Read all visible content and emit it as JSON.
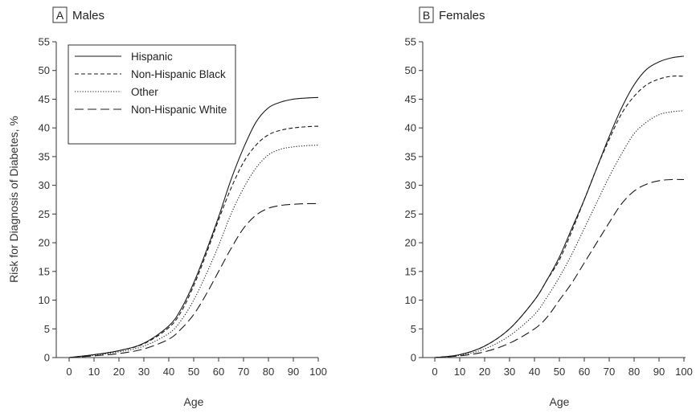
{
  "figure": {
    "ylabel": "Risk for Diagnosis of Diabetes, %"
  },
  "chart_data": [
    {
      "type": "line",
      "panel_letter": "A",
      "title": "Males",
      "xlabel": "Age",
      "ylabel": "Risk for Diagnosis of Diabetes, %",
      "xlim": [
        0,
        100
      ],
      "ylim": [
        0,
        55
      ],
      "xticks": [
        0,
        10,
        20,
        30,
        40,
        50,
        60,
        70,
        80,
        90,
        100
      ],
      "yticks": [
        0,
        5,
        10,
        15,
        20,
        25,
        30,
        35,
        40,
        45,
        50,
        55
      ],
      "grid": false,
      "legend_position": "top-left",
      "x": [
        0,
        10,
        20,
        30,
        40,
        45,
        50,
        55,
        60,
        65,
        70,
        75,
        80,
        85,
        90,
        95,
        100
      ],
      "series": [
        {
          "name": "Hispanic",
          "dash": "solid",
          "values": [
            0,
            0.5,
            1.2,
            2.5,
            5.5,
            8.5,
            13,
            18.5,
            24.5,
            31,
            36.5,
            41,
            43.5,
            44.5,
            45,
            45.2,
            45.3
          ]
        },
        {
          "name": "Non-Hispanic Black",
          "dash": "dashed",
          "values": [
            0,
            0.5,
            1.2,
            2.4,
            5.2,
            8,
            12.5,
            18,
            24,
            29.5,
            34,
            37,
            38.8,
            39.6,
            40,
            40.2,
            40.3
          ]
        },
        {
          "name": "Other",
          "dash": "dotted",
          "values": [
            0,
            0.4,
            1,
            2,
            4.2,
            6.5,
            10,
            14.5,
            19.5,
            25,
            29.5,
            33,
            35.3,
            36.3,
            36.7,
            36.9,
            37
          ]
        },
        {
          "name": "Non-Hispanic White",
          "dash": "longdash",
          "values": [
            0,
            0.3,
            0.7,
            1.5,
            3.2,
            5,
            7.5,
            11,
            15,
            19,
            22.5,
            24.8,
            26,
            26.5,
            26.7,
            26.8,
            26.8
          ]
        }
      ]
    },
    {
      "type": "line",
      "panel_letter": "B",
      "title": "Females",
      "xlabel": "Age",
      "ylabel": "",
      "xlim": [
        0,
        100
      ],
      "ylim": [
        0,
        55
      ],
      "xticks": [
        0,
        10,
        20,
        30,
        40,
        50,
        60,
        70,
        80,
        90,
        100
      ],
      "yticks": [
        0,
        5,
        10,
        15,
        20,
        25,
        30,
        35,
        40,
        45,
        50,
        55
      ],
      "grid": false,
      "legend_position": "none",
      "x": [
        0,
        10,
        20,
        30,
        40,
        45,
        50,
        55,
        60,
        65,
        70,
        75,
        80,
        85,
        90,
        95,
        100
      ],
      "series": [
        {
          "name": "Hispanic",
          "dash": "solid",
          "values": [
            0,
            0.5,
            2,
            5,
            10,
            13.5,
            17.5,
            22.5,
            27.5,
            33,
            38.5,
            43.5,
            47.5,
            50.2,
            51.5,
            52.2,
            52.5
          ]
        },
        {
          "name": "Non-Hispanic Black",
          "dash": "dashed",
          "values": [
            0,
            0.5,
            2,
            5,
            10,
            13.5,
            17,
            22,
            27.5,
            33,
            38,
            42.5,
            45.5,
            47.5,
            48.5,
            49,
            49
          ]
        },
        {
          "name": "Other",
          "dash": "dotted",
          "values": [
            0,
            0.4,
            1.5,
            3.8,
            7.5,
            10.5,
            14,
            18,
            22.5,
            27,
            31.5,
            35.5,
            39,
            41,
            42.3,
            42.8,
            43
          ]
        },
        {
          "name": "Non-Hispanic White",
          "dash": "longdash",
          "values": [
            0,
            0.3,
            1,
            2.5,
            5,
            7,
            10,
            13,
            16.5,
            20,
            23.5,
            26.8,
            29,
            30.2,
            30.8,
            31,
            31
          ]
        }
      ]
    }
  ]
}
